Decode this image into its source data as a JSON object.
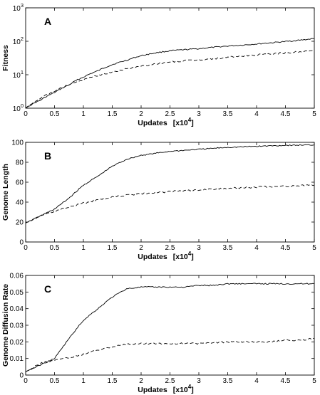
{
  "chart_data": [
    {
      "type": "line",
      "panel_label": "A",
      "xlabel": "Updates",
      "xlabel_units": "[x10",
      "xlabel_exp": "4",
      "xlabel_close": "]",
      "ylabel": "Fitness",
      "yscale": "log",
      "xlim": [
        0,
        5
      ],
      "ylim": [
        1,
        1000
      ],
      "x_ticks": [
        "0",
        "0.5",
        "1",
        "1.5",
        "2",
        "2.5",
        "3",
        "3.5",
        "4",
        "4.5",
        "5"
      ],
      "y_ticks": [
        {
          "base": "10",
          "exp": "0",
          "value": 1
        },
        {
          "base": "10",
          "exp": "1",
          "value": 10
        },
        {
          "base": "10",
          "exp": "2",
          "value": 100
        },
        {
          "base": "10",
          "exp": "3",
          "value": 1000
        }
      ],
      "x": [
        0,
        0.25,
        0.5,
        0.75,
        1.0,
        1.25,
        1.5,
        1.75,
        2.0,
        2.25,
        2.5,
        2.75,
        3.0,
        3.25,
        3.5,
        3.75,
        4.0,
        4.25,
        4.5,
        4.75,
        5.0
      ],
      "series": [
        {
          "style": "solid",
          "values": [
            1.0,
            1.7,
            2.9,
            4.9,
            8.5,
            13,
            20,
            27,
            37,
            45,
            52,
            56,
            60,
            66,
            72,
            77,
            83,
            90,
            98,
            108,
            120
          ]
        },
        {
          "style": "dashed",
          "values": [
            1.0,
            1.9,
            3.2,
            5.0,
            7.0,
            9.5,
            12,
            15,
            18,
            21,
            24,
            26,
            28,
            30,
            33,
            36,
            39,
            42,
            45,
            49,
            52
          ]
        }
      ]
    },
    {
      "type": "line",
      "panel_label": "B",
      "xlabel": "Updates",
      "xlabel_units": "[x10",
      "xlabel_exp": "4",
      "xlabel_close": "]",
      "ylabel": "Genome Length",
      "yscale": "linear",
      "xlim": [
        0,
        5
      ],
      "ylim": [
        0,
        100
      ],
      "x_ticks": [
        "0",
        "0.5",
        "1",
        "1.5",
        "2",
        "2.5",
        "3",
        "3.5",
        "4",
        "4.5",
        "5"
      ],
      "y_ticks": [
        {
          "label": "0",
          "value": 0
        },
        {
          "label": "20",
          "value": 20
        },
        {
          "label": "40",
          "value": 40
        },
        {
          "label": "60",
          "value": 60
        },
        {
          "label": "80",
          "value": 80
        },
        {
          "label": "100",
          "value": 100
        }
      ],
      "x": [
        0,
        0.25,
        0.5,
        0.75,
        1.0,
        1.25,
        1.5,
        1.75,
        2.0,
        2.25,
        2.5,
        2.75,
        3.0,
        3.25,
        3.5,
        3.75,
        4.0,
        4.25,
        4.5,
        4.75,
        5.0
      ],
      "series": [
        {
          "style": "solid",
          "values": [
            19,
            26,
            33,
            44,
            57,
            66,
            76,
            83,
            87,
            89,
            91,
            92,
            93,
            94,
            95,
            95.5,
            96,
            96.5,
            97,
            97.2,
            97.5
          ]
        },
        {
          "style": "dashed",
          "values": [
            19,
            26,
            31,
            35,
            39,
            42,
            45,
            47,
            48.5,
            49.5,
            50.5,
            51.5,
            52,
            53,
            54,
            54.5,
            55,
            55.5,
            56,
            56.5,
            57
          ]
        }
      ]
    },
    {
      "type": "line",
      "panel_label": "C",
      "xlabel": "Updates",
      "xlabel_units": "[x10",
      "xlabel_exp": "4",
      "xlabel_close": "]",
      "ylabel": "Genome Diffusion Rate",
      "yscale": "linear",
      "xlim": [
        0,
        5
      ],
      "ylim": [
        0,
        0.06
      ],
      "x_ticks": [
        "0",
        "0.5",
        "1",
        "1.5",
        "2",
        "2.5",
        "3",
        "3.5",
        "4",
        "4.5",
        "5"
      ],
      "y_ticks": [
        {
          "label": "0",
          "value": 0
        },
        {
          "label": "0.01",
          "value": 0.01
        },
        {
          "label": "0.02",
          "value": 0.02
        },
        {
          "label": "0.03",
          "value": 0.03
        },
        {
          "label": "0.04",
          "value": 0.04
        },
        {
          "label": "0.05",
          "value": 0.05
        },
        {
          "label": "0.06",
          "value": 0.06
        }
      ],
      "x": [
        0,
        0.25,
        0.5,
        0.75,
        1.0,
        1.25,
        1.5,
        1.75,
        2.0,
        2.25,
        2.5,
        2.75,
        3.0,
        3.25,
        3.5,
        3.75,
        4.0,
        4.25,
        4.5,
        4.75,
        5.0
      ],
      "series": [
        {
          "style": "solid",
          "values": [
            0.002,
            0.006,
            0.01,
            0.022,
            0.033,
            0.04,
            0.047,
            0.052,
            0.053,
            0.053,
            0.053,
            0.053,
            0.054,
            0.054,
            0.055,
            0.055,
            0.055,
            0.055,
            0.055,
            0.055,
            0.055
          ]
        },
        {
          "style": "dashed",
          "values": [
            0.002,
            0.007,
            0.009,
            0.0105,
            0.0125,
            0.015,
            0.017,
            0.0185,
            0.019,
            0.019,
            0.019,
            0.019,
            0.019,
            0.0195,
            0.02,
            0.02,
            0.02,
            0.02,
            0.021,
            0.021,
            0.022
          ]
        }
      ]
    }
  ]
}
